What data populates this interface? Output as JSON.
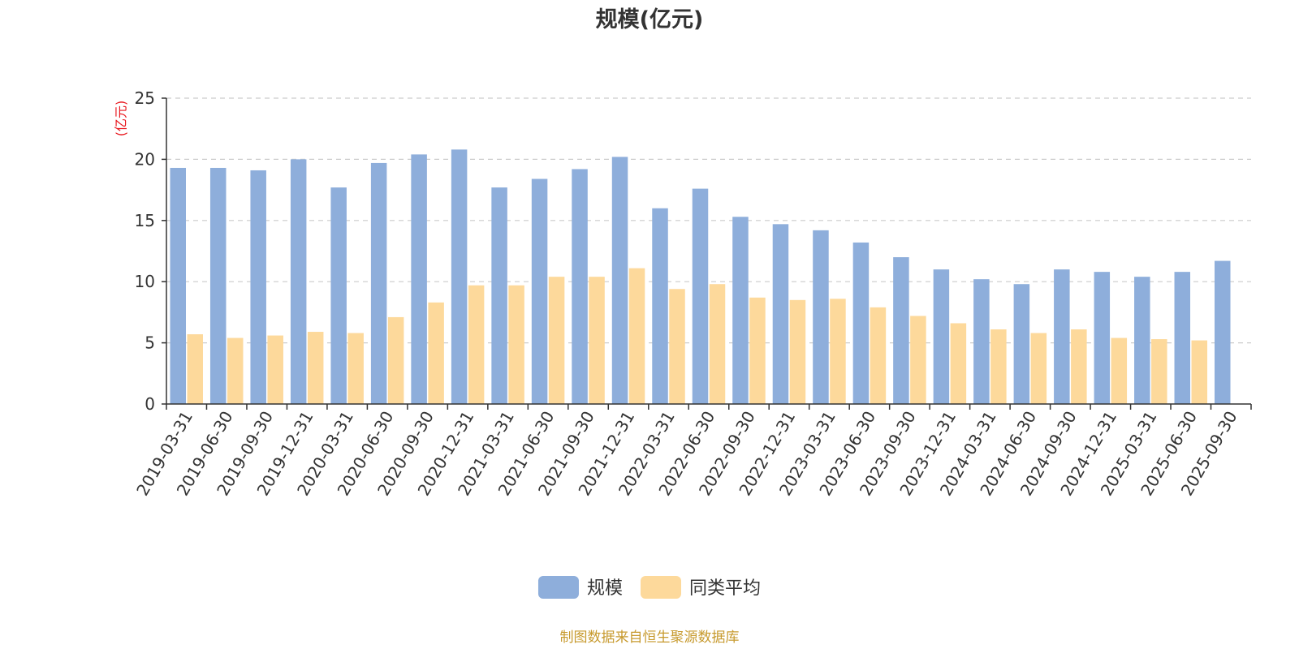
{
  "chart_data": {
    "type": "bar",
    "title": "规模(亿元)",
    "y_unit_label": "(亿元)",
    "ylim": [
      0,
      25
    ],
    "yticks": [
      0,
      5,
      10,
      15,
      20,
      25
    ],
    "grid": true,
    "legend_position": "bottom-center",
    "categories": [
      "2019-03-31",
      "2019-06-30",
      "2019-09-30",
      "2019-12-31",
      "2020-03-31",
      "2020-06-30",
      "2020-09-30",
      "2020-12-31",
      "2021-03-31",
      "2021-06-30",
      "2021-09-30",
      "2021-12-31",
      "2022-03-31",
      "2022-06-30",
      "2022-09-30",
      "2022-12-31",
      "2023-03-31",
      "2023-06-30",
      "2023-09-30",
      "2023-12-31",
      "2024-03-31",
      "2024-06-30",
      "2024-09-30",
      "2024-12-31",
      "2025-03-31",
      "2025-06-30",
      "2025-09-30"
    ],
    "series": [
      {
        "name": "规模",
        "color": "#8eaedb",
        "values": [
          19.3,
          19.3,
          19.1,
          20.0,
          17.7,
          19.7,
          20.4,
          20.8,
          17.7,
          18.4,
          19.2,
          20.2,
          16.0,
          17.6,
          15.3,
          14.7,
          14.2,
          13.2,
          12.0,
          11.0,
          10.2,
          9.8,
          11.0,
          10.8,
          10.4,
          10.8,
          11.7
        ]
      },
      {
        "name": "同类平均",
        "color": "#fdd99b",
        "values": [
          5.7,
          5.4,
          5.6,
          5.9,
          5.8,
          7.1,
          8.3,
          9.7,
          9.7,
          10.4,
          10.4,
          11.1,
          9.4,
          9.8,
          8.7,
          8.5,
          8.6,
          7.9,
          7.2,
          6.6,
          6.1,
          5.8,
          6.1,
          5.4,
          5.3,
          5.2,
          null
        ]
      }
    ],
    "source_note": "制图数据来自恒生聚源数据库"
  }
}
